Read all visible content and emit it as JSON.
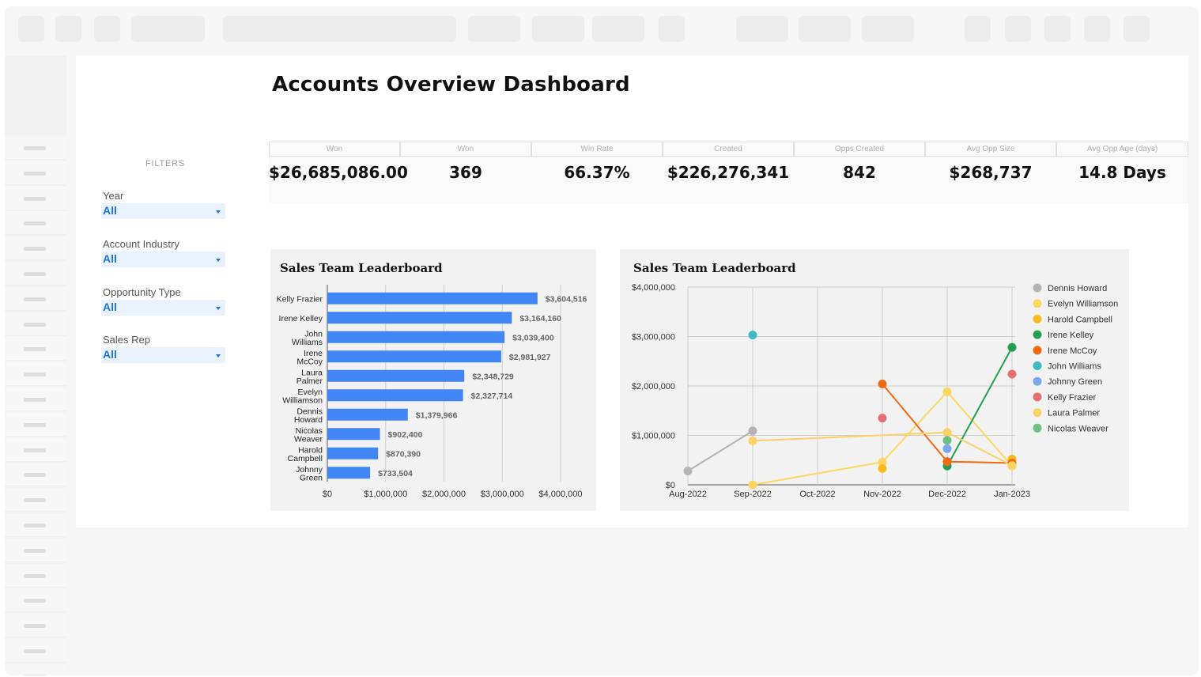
{
  "title": "Accounts Overview Dashboard",
  "filters": {
    "heading": "FILTERS",
    "items": [
      {
        "label": "Year",
        "value": "All"
      },
      {
        "label": "Account Industry",
        "value": "All"
      },
      {
        "label": "Opportunity Type",
        "value": "All"
      },
      {
        "label": "Sales Rep",
        "value": "All"
      }
    ]
  },
  "kpis": [
    {
      "label": "Won",
      "value": "$26,685,086.00"
    },
    {
      "label": "Won",
      "value": "369"
    },
    {
      "label": "Win Rate",
      "value": "66.37%"
    },
    {
      "label": "Created",
      "value": "$226,276,341"
    },
    {
      "label": "Opps Created",
      "value": "842"
    },
    {
      "label": "Avg Opp Size",
      "value": "$268,737"
    },
    {
      "label": "Avg Opp Age (days)",
      "value": "14.8 Days"
    }
  ],
  "colors": {
    "bar": "#4285f4",
    "link": "#1a73e8"
  },
  "chart_data": [
    {
      "type": "bar",
      "orientation": "horizontal",
      "title": "Sales Team Leaderboard",
      "categories": [
        [
          "Kelly Frazier"
        ],
        [
          "Irene Kelley"
        ],
        [
          "John",
          "Williams"
        ],
        [
          "Irene",
          "McCoy"
        ],
        [
          "Laura",
          "Palmer"
        ],
        [
          "Evelyn",
          "Williamson"
        ],
        [
          "Dennis",
          "Howard"
        ],
        [
          "Nicolas",
          "Weaver"
        ],
        [
          "Harold",
          "Campbell"
        ],
        [
          "Johnny",
          "Green"
        ]
      ],
      "values": [
        3604516,
        3164160,
        3039400,
        2981927,
        2348729,
        2327714,
        1379966,
        902400,
        870390,
        733504
      ],
      "value_labels": [
        "$3,604,516",
        "$3,164,160",
        "$3,039,400",
        "$2,981,927",
        "$2,348,729",
        "$2,327,714",
        "$1,379,966",
        "$902,400",
        "$870,390",
        "$733,504"
      ],
      "xlim": [
        0,
        4000000
      ],
      "x_ticks": [
        "$0",
        "$1,000,000",
        "$2,000,000",
        "$3,000,000",
        "$4,000,000"
      ],
      "grid": true,
      "color": "#4285f4"
    },
    {
      "type": "line",
      "title": "Sales Team Leaderboard",
      "x": [
        "Aug-2022",
        "Sep-2022",
        "Oct-2022",
        "Nov-2022",
        "Dec-2022",
        "Jan-2023"
      ],
      "ylim": [
        0,
        4000000
      ],
      "y_ticks": [
        "$0",
        "$1,000,000",
        "$2,000,000",
        "$3,000,000",
        "$4,000,000"
      ],
      "grid": true,
      "legend": "right",
      "series": [
        {
          "name": "Dennis Howard",
          "color": "#b4b4b4",
          "values": [
            280000,
            1090000,
            null,
            null,
            null,
            null
          ],
          "lines": true
        },
        {
          "name": "Evelyn Williamson",
          "color": "#fdd663",
          "values": [
            null,
            0,
            null,
            460000,
            1880000,
            380000
          ],
          "lines": true
        },
        {
          "name": "Harold Campbell",
          "color": "#f9bb1a",
          "values": [
            null,
            null,
            null,
            330000,
            null,
            520000
          ],
          "lines": false
        },
        {
          "name": "Irene Kelley",
          "color": "#22a04f",
          "values": [
            null,
            null,
            null,
            null,
            380000,
            2780000
          ],
          "lines": true
        },
        {
          "name": "Irene McCoy",
          "color": "#f26a0f",
          "values": [
            null,
            null,
            null,
            2040000,
            470000,
            440000
          ],
          "lines": true
        },
        {
          "name": "John Williams",
          "color": "#3dbac3",
          "values": [
            null,
            3030000,
            null,
            null,
            null,
            null
          ],
          "lines": false
        },
        {
          "name": "Johnny Green",
          "color": "#7ba7ef",
          "values": [
            null,
            null,
            null,
            null,
            730000,
            null
          ],
          "lines": false
        },
        {
          "name": "Kelly Frazier",
          "color": "#e86f6f",
          "values": [
            null,
            null,
            null,
            1350000,
            null,
            2240000
          ],
          "lines": false
        },
        {
          "name": "Laura Palmer",
          "color": "#fcd267",
          "values": [
            null,
            890000,
            null,
            null,
            1060000,
            390000
          ],
          "lines": true
        },
        {
          "name": "Nicolas Weaver",
          "color": "#6cc184",
          "values": [
            null,
            null,
            null,
            null,
            900000,
            null
          ],
          "lines": false
        }
      ]
    }
  ]
}
